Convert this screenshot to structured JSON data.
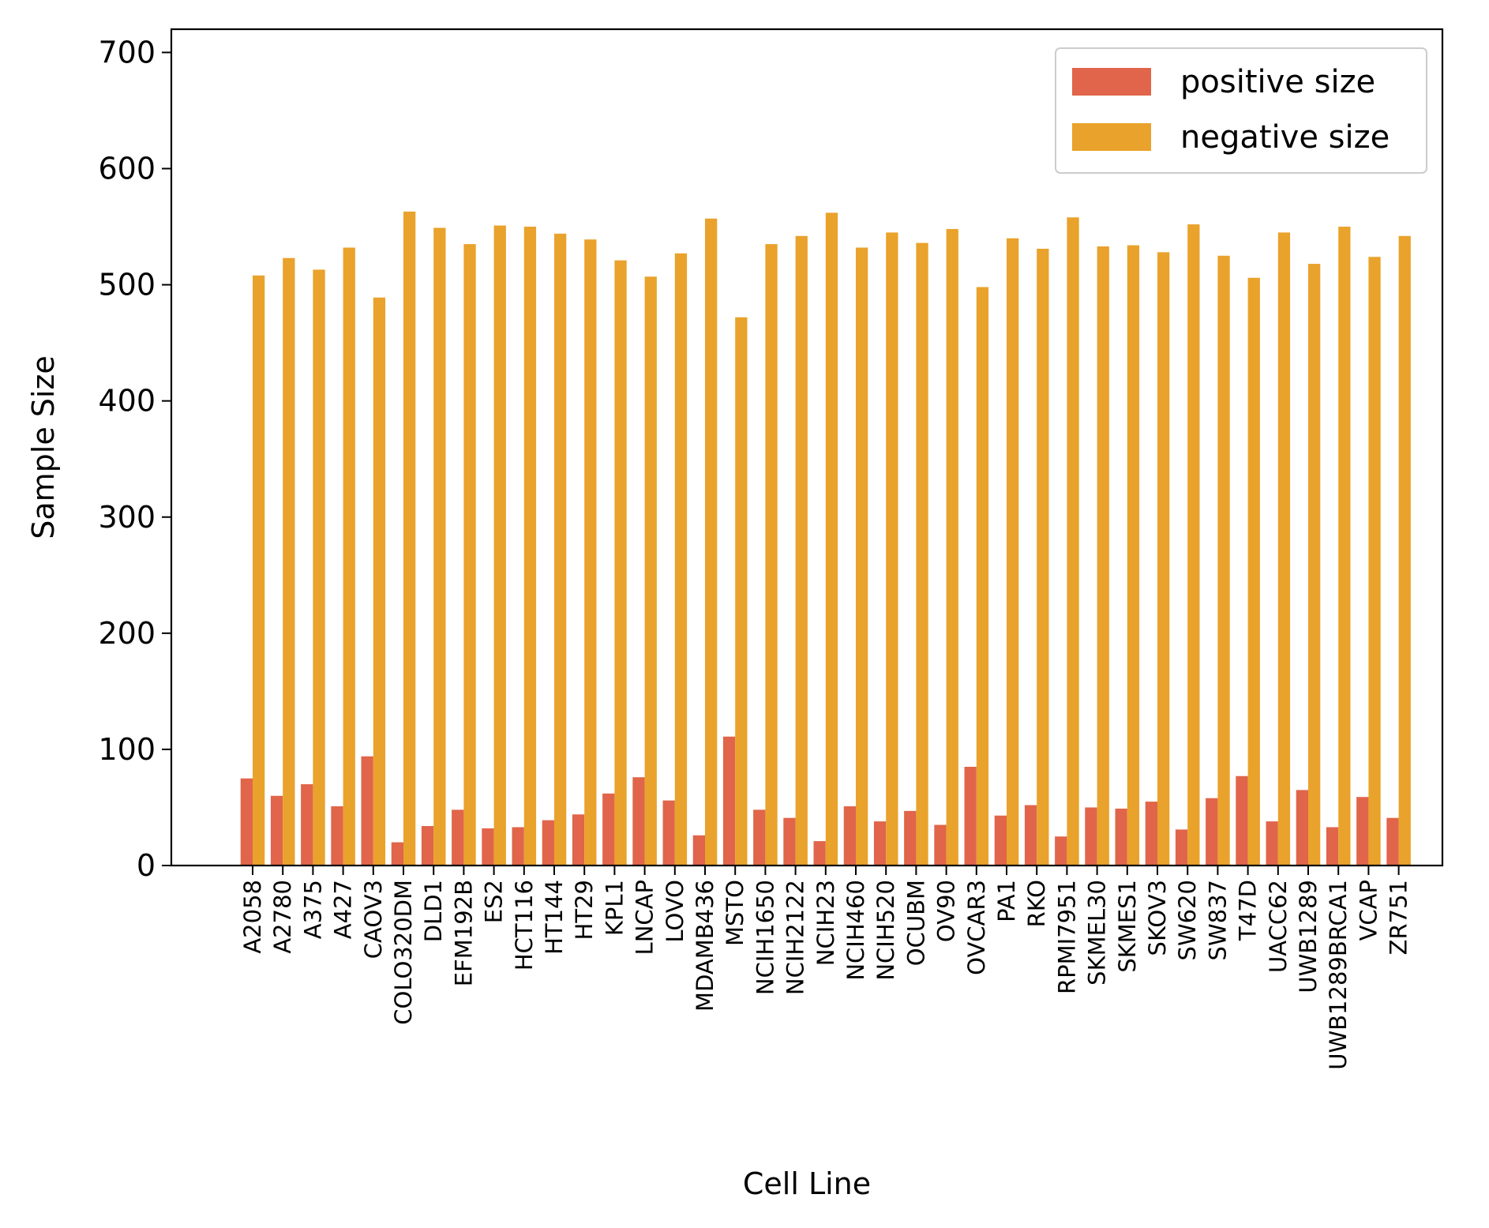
{
  "chart_data": {
    "type": "bar",
    "title": "",
    "xlabel": "Cell Line",
    "ylabel": "Sample Size",
    "ylim": [
      0,
      720
    ],
    "yticks": [
      0,
      100,
      200,
      300,
      400,
      500,
      600,
      700
    ],
    "grid": false,
    "legend_position": "top-right",
    "categories": [
      "A2058",
      "A2780",
      "A375",
      "A427",
      "CAOV3",
      "COLO320DM",
      "DLD1",
      "EFM192B",
      "ES2",
      "HCT116",
      "HT144",
      "HT29",
      "KPL1",
      "LNCAP",
      "LOVO",
      "MDAMB436",
      "MSTO",
      "NCIH1650",
      "NCIH2122",
      "NCIH23",
      "NCIH460",
      "NCIH520",
      "OCUBM",
      "OV90",
      "OVCAR3",
      "PA1",
      "RKO",
      "RPMI7951",
      "SKMEL30",
      "SKMES1",
      "SKOV3",
      "SW620",
      "SW837",
      "T47D",
      "UACC62",
      "UWB1289",
      "UWB1289BRCA1",
      "VCAP",
      "ZR751"
    ],
    "series": [
      {
        "name": "positive size",
        "color": "#e0654a",
        "values": [
          75,
          60,
          70,
          51,
          94,
          20,
          34,
          48,
          32,
          33,
          39,
          44,
          62,
          76,
          56,
          26,
          111,
          48,
          41,
          21,
          51,
          38,
          47,
          35,
          85,
          43,
          52,
          25,
          50,
          49,
          55,
          31,
          58,
          77,
          38,
          65,
          33,
          59,
          41
        ]
      },
      {
        "name": "negative size",
        "color": "#e9a22b",
        "values": [
          508,
          523,
          513,
          532,
          489,
          563,
          549,
          535,
          551,
          550,
          544,
          539,
          521,
          507,
          527,
          557,
          472,
          535,
          542,
          562,
          532,
          545,
          536,
          548,
          498,
          540,
          531,
          558,
          533,
          534,
          528,
          552,
          525,
          506,
          545,
          518,
          550,
          524,
          542
        ]
      }
    ]
  }
}
